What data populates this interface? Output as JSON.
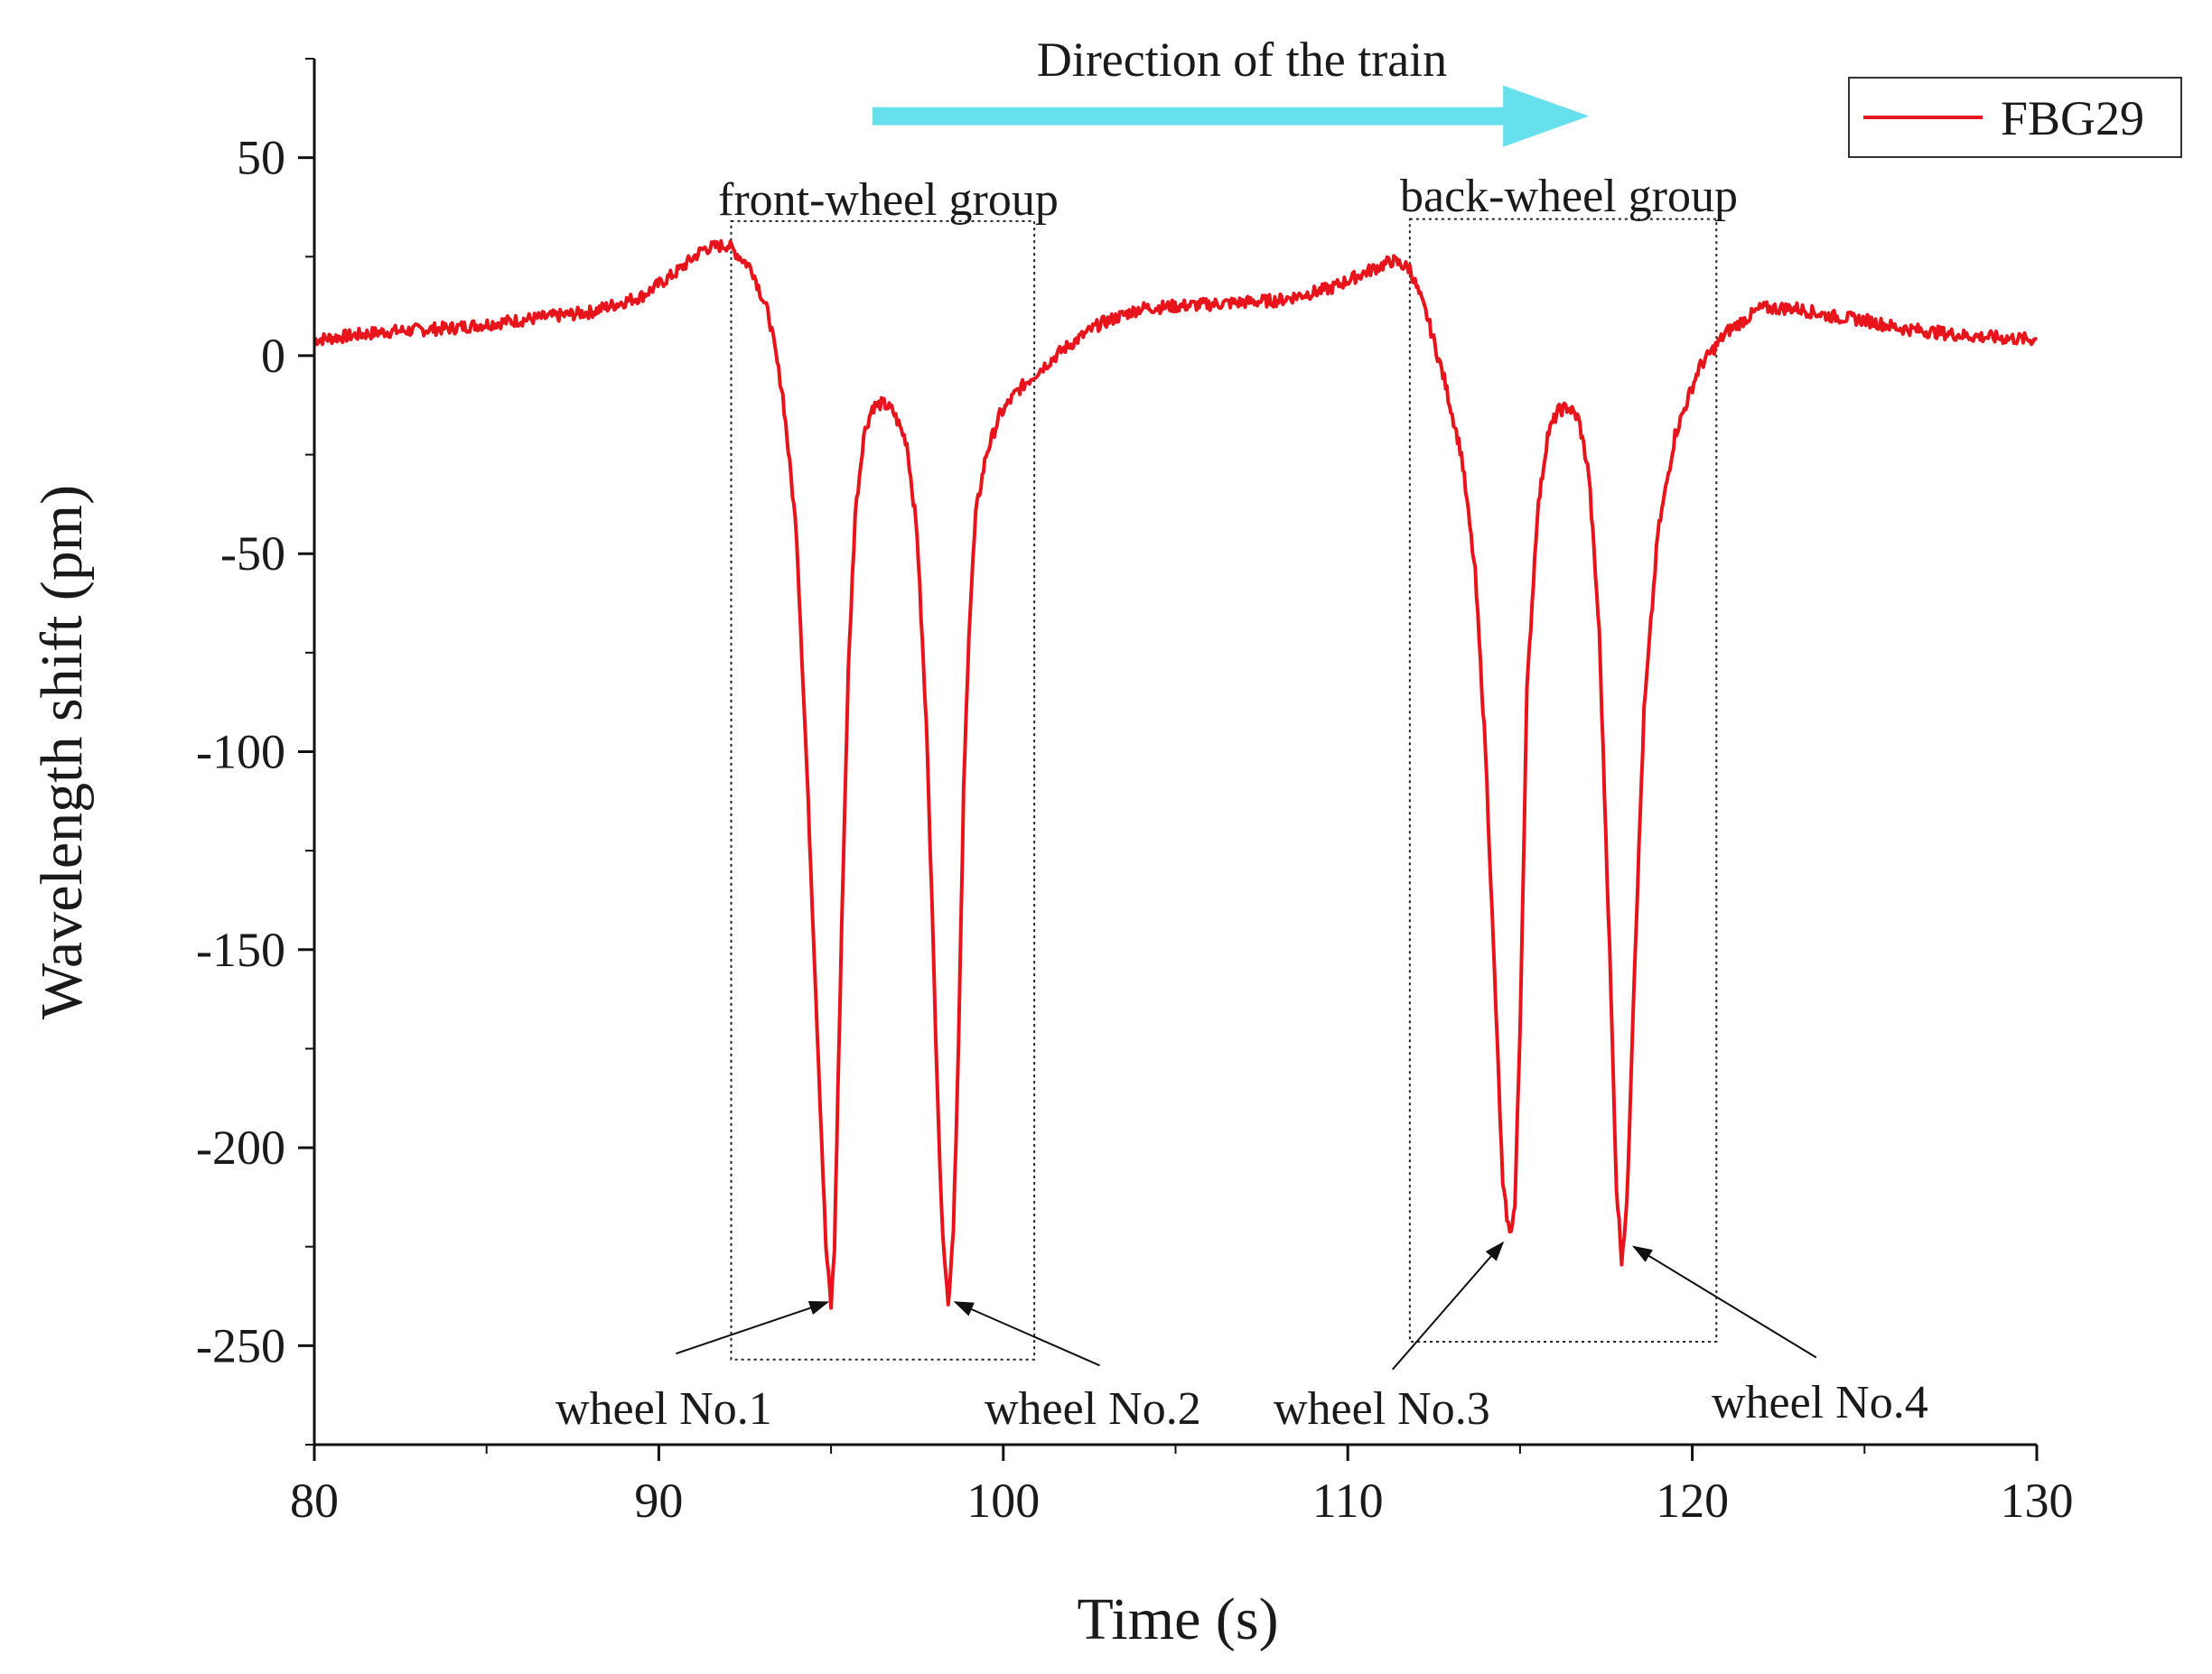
{
  "chart_data": {
    "type": "line",
    "title": "",
    "xlabel": "Time (s)",
    "ylabel": "Wavelength shift (pm)",
    "xlim": [
      80,
      130
    ],
    "ylim": [
      -275,
      75
    ],
    "xticks": [
      80,
      90,
      100,
      110,
      120,
      130
    ],
    "yticks": [
      50,
      0,
      -50,
      -100,
      -150,
      -200,
      -250
    ],
    "series": [
      {
        "name": "FBG29",
        "color": "#e8141c",
        "x": [
          80,
          82,
          84,
          86,
          88,
          89.5,
          90.5,
          91.3,
          92,
          92.7,
          93.2,
          93.6,
          94.0,
          94.3,
          94.6,
          94.85,
          95.0,
          95.1,
          95.2,
          95.35,
          95.5,
          95.7,
          95.95,
          96.2,
          96.5,
          96.8,
          97.2,
          97.5,
          97.8,
          98.0,
          98.2,
          98.4,
          98.55,
          98.7,
          98.85,
          99.0,
          99.2,
          99.5,
          99.9,
          100.4,
          101,
          101.8,
          102.8,
          104,
          106,
          108,
          109.5,
          110.5,
          111.3,
          111.8,
          112.3,
          112.8,
          113.3,
          113.7,
          114.0,
          114.3,
          114.5,
          114.7,
          114.85,
          115.0,
          115.2,
          115.5,
          115.8,
          116.1,
          116.4,
          116.7,
          117.0,
          117.3,
          117.6,
          117.8,
          117.95,
          118.1,
          118.3,
          118.6,
          119.0,
          119.5,
          120.2,
          121,
          122,
          123,
          124,
          125,
          126,
          128,
          130
        ],
        "y": [
          4,
          6,
          7,
          9,
          11,
          15,
          21,
          27,
          28,
          22,
          10,
          -10,
          -45,
          -105,
          -170,
          -225,
          -240,
          -225,
          -185,
          -130,
          -80,
          -40,
          -20,
          -13,
          -12,
          -14,
          -22,
          -45,
          -100,
          -160,
          -215,
          -240,
          -220,
          -175,
          -110,
          -70,
          -40,
          -25,
          -15,
          -9,
          -4,
          2,
          8,
          12,
          13,
          14,
          17,
          21,
          24,
          22,
          10,
          -6,
          -25,
          -55,
          -100,
          -165,
          -210,
          -222,
          -215,
          -170,
          -85,
          -40,
          -20,
          -14,
          -13,
          -16,
          -30,
          -70,
          -150,
          -210,
          -228,
          -215,
          -160,
          -90,
          -45,
          -20,
          -3,
          6,
          12,
          12,
          10,
          9,
          7,
          5,
          4
        ]
      }
    ],
    "legend": {
      "position": "top-right",
      "entries": [
        "FBG29"
      ]
    },
    "annotations": {
      "direction_label": "Direction of the train",
      "direction_arrow": {
        "x_from": 96.2,
        "x_to": 117.0,
        "y": 60.5,
        "color": "#66e0ec"
      },
      "front_group": {
        "label": "front-wheel group",
        "x_from": 92.1,
        "x_to": 100.9,
        "y_top": 34,
        "y_bottom": -253.5
      },
      "back_group": {
        "label": "back-wheel group",
        "x_from": 111.8,
        "x_to": 120.7,
        "y_top": 34.5,
        "y_bottom": -249
      },
      "wheels": [
        {
          "label": "wheel No.1",
          "tip": [
            94.9,
            -239
          ],
          "tail": [
            90.5,
            -252
          ]
        },
        {
          "label": "wheel No.2",
          "tip": [
            98.6,
            -239
          ],
          "tail": [
            102.8,
            -255
          ]
        },
        {
          "label": "wheel No.3",
          "tip": [
            114.5,
            -224
          ],
          "tail": [
            111.3,
            -256
          ]
        },
        {
          "label": "wheel No.4",
          "tip": [
            118.3,
            -225
          ],
          "tail": [
            123.6,
            -253
          ]
        }
      ]
    }
  }
}
